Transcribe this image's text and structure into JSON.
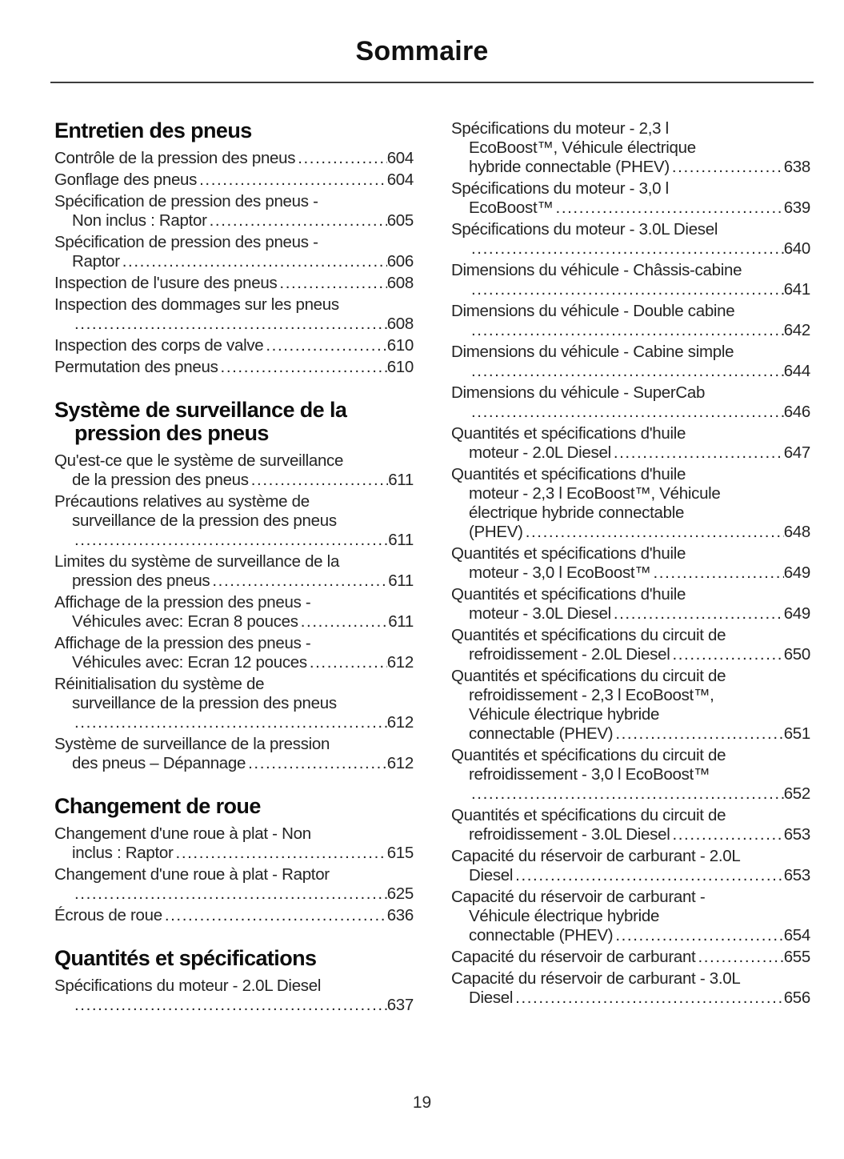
{
  "page": {
    "title": "Sommaire",
    "number": "19"
  },
  "colors": {
    "text": "#212121",
    "background": "#ffffff"
  },
  "columns": {
    "left": {
      "sections": [
        {
          "heading_lines": [
            "Entretien des pneus"
          ],
          "entries": [
            {
              "lines": [],
              "last": "Contrôle de la pression des pneus",
              "page": "604"
            },
            {
              "lines": [],
              "last": "Gonflage des pneus",
              "page": "604"
            },
            {
              "lines": [
                "Spécification de pression des pneus -"
              ],
              "last": "Non inclus : Raptor",
              "page": "605"
            },
            {
              "lines": [
                "Spécification de pression des pneus -"
              ],
              "last": "Raptor",
              "page": "606"
            },
            {
              "lines": [],
              "last": "Inspection de l'usure des pneus",
              "page": "608"
            },
            {
              "lines": [
                "Inspection des dommages sur les pneus"
              ],
              "last": "",
              "page": "608"
            },
            {
              "lines": [],
              "last": "Inspection des corps de valve",
              "page": "610"
            },
            {
              "lines": [],
              "last": "Permutation des pneus",
              "page": "610"
            }
          ]
        },
        {
          "heading_lines": [
            "Système de surveillance de la",
            "pression des pneus"
          ],
          "entries": [
            {
              "lines": [
                "Qu'est-ce que le système de surveillance"
              ],
              "last": "de la pression des pneus",
              "page": "611"
            },
            {
              "lines": [
                "Précautions relatives au système de",
                "surveillance de la pression des pneus"
              ],
              "last": "",
              "page": "611"
            },
            {
              "lines": [
                "Limites du système de surveillance de la"
              ],
              "last": "pression des pneus",
              "page": "611"
            },
            {
              "lines": [
                "Affichage de la pression des pneus -"
              ],
              "last": "Véhicules avec: Ecran 8 pouces",
              "page": "611"
            },
            {
              "lines": [
                "Affichage de la pression des pneus -"
              ],
              "last": "Véhicules avec: Ecran 12 pouces",
              "page": "612"
            },
            {
              "lines": [
                "Réinitialisation du système de",
                "surveillance de la pression des pneus"
              ],
              "last": "",
              "page": "612"
            },
            {
              "lines": [
                "Système de surveillance de la pression"
              ],
              "last": "des pneus – Dépannage",
              "page": "612"
            }
          ]
        },
        {
          "heading_lines": [
            "Changement de roue"
          ],
          "entries": [
            {
              "lines": [
                "Changement d'une roue à plat - Non"
              ],
              "last": "inclus : Raptor",
              "page": "615"
            },
            {
              "lines": [
                "Changement d'une roue à plat - Raptor"
              ],
              "last": "",
              "page": "625"
            },
            {
              "lines": [],
              "last": "Écrous de roue",
              "page": "636"
            }
          ]
        },
        {
          "heading_lines": [
            "Quantités et spécifications"
          ],
          "entries": [
            {
              "lines": [
                "Spécifications du moteur - 2.0L Diesel"
              ],
              "last": "",
              "page": "637"
            }
          ]
        }
      ]
    },
    "right": {
      "sections": [
        {
          "heading_lines": [],
          "entries": [
            {
              "lines": [
                "Spécifications du moteur - 2,3 l",
                "EcoBoost™, Véhicule électrique"
              ],
              "last": "hybride connectable (PHEV)",
              "page": "638"
            },
            {
              "lines": [
                "Spécifications du moteur - 3,0 l"
              ],
              "last": "EcoBoost™",
              "page": "639"
            },
            {
              "lines": [
                "Spécifications du moteur - 3.0L Diesel"
              ],
              "last": "",
              "page": "640"
            },
            {
              "lines": [
                "Dimensions du véhicule - Châssis-cabine"
              ],
              "last": "",
              "page": "641"
            },
            {
              "lines": [
                "Dimensions du véhicule - Double cabine"
              ],
              "last": "",
              "page": "642"
            },
            {
              "lines": [
                "Dimensions du véhicule - Cabine simple"
              ],
              "last": "",
              "page": "644"
            },
            {
              "lines": [
                "Dimensions du véhicule - SuperCab"
              ],
              "last": "",
              "page": "646"
            },
            {
              "lines": [
                "Quantités et spécifications d'huile"
              ],
              "last": "moteur - 2.0L Diesel",
              "page": "647"
            },
            {
              "lines": [
                "Quantités et spécifications d'huile",
                "moteur - 2,3 l EcoBoost™, Véhicule",
                "électrique hybride connectable"
              ],
              "last": "(PHEV)",
              "page": "648"
            },
            {
              "lines": [
                "Quantités et spécifications d'huile"
              ],
              "last": "moteur - 3,0 l EcoBoost™",
              "page": "649"
            },
            {
              "lines": [
                "Quantités et spécifications d'huile"
              ],
              "last": "moteur - 3.0L Diesel",
              "page": "649"
            },
            {
              "lines": [
                "Quantités et spécifications du circuit de"
              ],
              "last": "refroidissement - 2.0L Diesel",
              "page": "650"
            },
            {
              "lines": [
                "Quantités et spécifications du circuit de",
                "refroidissement - 2,3 l EcoBoost™,",
                "Véhicule électrique hybride"
              ],
              "last": "connectable (PHEV)",
              "page": "651"
            },
            {
              "lines": [
                "Quantités et spécifications du circuit de",
                "refroidissement - 3,0 l EcoBoost™"
              ],
              "last": "",
              "page": "652"
            },
            {
              "lines": [
                "Quantités et spécifications du circuit de"
              ],
              "last": "refroidissement - 3.0L Diesel",
              "page": "653"
            },
            {
              "lines": [
                "Capacité du réservoir de carburant - 2.0L"
              ],
              "last": "Diesel",
              "page": "653"
            },
            {
              "lines": [
                "Capacité du réservoir de carburant -",
                "Véhicule électrique hybride"
              ],
              "last": "connectable (PHEV)",
              "page": "654"
            },
            {
              "lines": [],
              "last": "Capacité du réservoir de carburant",
              "page": "655"
            },
            {
              "lines": [
                "Capacité du réservoir de carburant - 3.0L"
              ],
              "last": "Diesel",
              "page": "656"
            }
          ]
        }
      ]
    }
  }
}
